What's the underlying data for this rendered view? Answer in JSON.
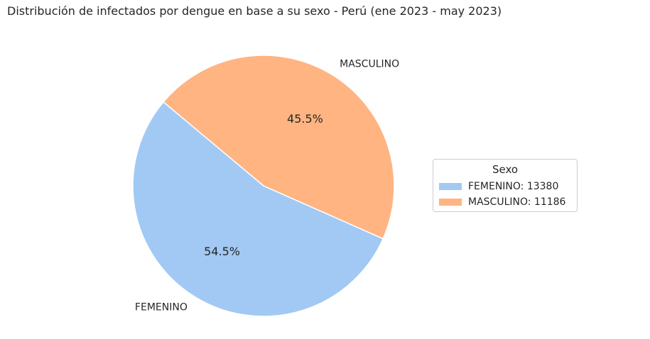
{
  "title": "Distribución de infectados por dengue en base a su sexo - Perú (ene 2023 - may 2023)",
  "chart_data": {
    "type": "pie",
    "title": "Distribución de infectados por dengue en base a su sexo - Perú (ene 2023 - may 2023)",
    "slices": [
      {
        "label": "FEMENINO",
        "value": 13380,
        "pct_label": "54.5%",
        "color": "#a1c9f4"
      },
      {
        "label": "MASCULINO",
        "value": 11186,
        "pct_label": "45.5%",
        "color": "#ffb482"
      }
    ],
    "legend": {
      "title": "Sexo",
      "placement": "center-right",
      "entries": [
        "FEMENINO: 13380",
        "MASCULINO: 11186"
      ]
    }
  }
}
